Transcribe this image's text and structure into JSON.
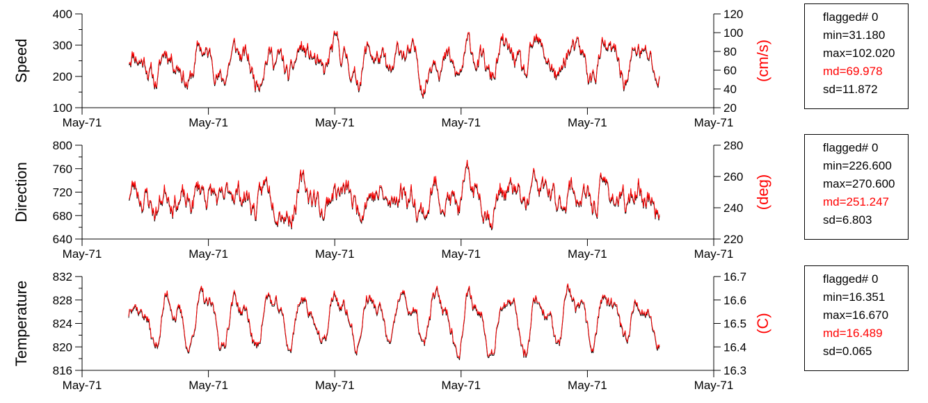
{
  "chart_data": [
    {
      "type": "line",
      "ylabel": "Speed",
      "ylabel_right": "(cm/s)",
      "ylim": [
        100,
        400
      ],
      "yticks": [
        "100",
        "200",
        "300",
        "400"
      ],
      "ylim_right": [
        20,
        120
      ],
      "yticks_right": [
        "20",
        "40",
        "60",
        "80",
        "100",
        "120"
      ],
      "xticks": [
        "May-71",
        "May-71",
        "May-71",
        "May-71",
        "May-71",
        "May-71"
      ],
      "series": [
        {
          "color": "#000000",
          "mean": 69.978,
          "min": 31.18,
          "max": 102.02,
          "sd": 11.872,
          "period": 48,
          "amp": 0.75,
          "noise": 0.45,
          "seed": 11
        },
        {
          "color": "#ff0000",
          "mean": 69.978,
          "min": 31.18,
          "max": 102.02,
          "sd": 11.872,
          "period": 48,
          "amp": 0.75,
          "noise": 0.45,
          "seed": 11
        }
      ],
      "stats": {
        "flagged": "flagged# 0",
        "min": "min=31.180",
        "max": "max=102.020",
        "md": "md=69.978",
        "sd": "sd=11.872"
      }
    },
    {
      "type": "line",
      "ylabel": "Direction",
      "ylabel_right": "(deg)",
      "ylim": [
        640,
        800
      ],
      "yticks": [
        "640",
        "680",
        "720",
        "760",
        "800"
      ],
      "ylim_right": [
        220,
        280
      ],
      "yticks_right": [
        "220",
        "240",
        "260",
        "280"
      ],
      "xticks": [
        "May-71",
        "May-71",
        "May-71",
        "May-71",
        "May-71",
        "May-71"
      ],
      "series": [
        {
          "color": "#000000",
          "mean": 251.247,
          "min": 226.6,
          "max": 270.6,
          "sd": 6.803,
          "period": 48,
          "amp": 0.6,
          "noise": 0.6,
          "seed": 23
        },
        {
          "color": "#ff0000",
          "mean": 251.247,
          "min": 226.6,
          "max": 270.6,
          "sd": 6.803,
          "period": 48,
          "amp": 0.6,
          "noise": 0.6,
          "seed": 23
        }
      ],
      "stats": {
        "flagged": "flagged# 0",
        "min": "min=226.600",
        "max": "max=270.600",
        "md": "md=251.247",
        "sd": "sd=6.803"
      }
    },
    {
      "type": "line",
      "ylabel": "Temperature",
      "ylabel_right": "(C)",
      "ylim": [
        816,
        832
      ],
      "yticks": [
        "816",
        "820",
        "824",
        "828",
        "832"
      ],
      "ylim_right": [
        16.3,
        16.7
      ],
      "yticks_right": [
        "16.3",
        "16.4",
        "16.5",
        "16.6",
        "16.7"
      ],
      "xticks": [
        "May-71",
        "May-71",
        "May-71",
        "May-71",
        "May-71",
        "May-71"
      ],
      "series": [
        {
          "color": "#000000",
          "mean": 16.489,
          "min": 16.351,
          "max": 16.67,
          "sd": 0.065,
          "period": 48,
          "amp": 0.8,
          "noise": 0.2,
          "seed": 37,
          "step": 0.01
        },
        {
          "color": "#ff0000",
          "mean": 16.489,
          "min": 16.351,
          "max": 16.67,
          "sd": 0.065,
          "period": 48,
          "amp": 0.8,
          "noise": 0.2,
          "seed": 37,
          "step": 0.01
        }
      ],
      "stats": {
        "flagged": "flagged# 0",
        "min": "min=16.351",
        "max": "max=16.670",
        "md": "md=16.489",
        "sd": "sd=0.065"
      }
    }
  ]
}
